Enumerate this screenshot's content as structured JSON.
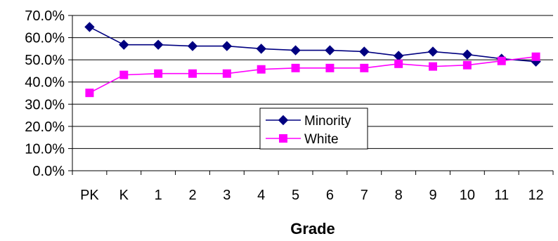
{
  "chart_data": {
    "type": "line",
    "title": "",
    "xlabel": "Grade",
    "ylabel": "",
    "categories": [
      "PK",
      "K",
      "1",
      "2",
      "3",
      "4",
      "5",
      "6",
      "7",
      "8",
      "9",
      "10",
      "11",
      "12"
    ],
    "series": [
      {
        "name": "Minority",
        "color": "#000080",
        "marker": "diamond",
        "values": [
          64.8,
          56.8,
          56.8,
          56.2,
          56.2,
          55.0,
          54.3,
          54.3,
          53.7,
          51.8,
          53.7,
          52.4,
          50.5,
          49.2
        ]
      },
      {
        "name": "White",
        "color": "#ff00ff",
        "marker": "square",
        "values": [
          35.1,
          43.2,
          43.8,
          43.8,
          43.8,
          45.7,
          46.3,
          46.3,
          46.3,
          48.2,
          47.0,
          47.6,
          49.5,
          51.4
        ]
      }
    ],
    "yticks": [
      "0.0%",
      "10.0%",
      "20.0%",
      "30.0%",
      "40.0%",
      "50.0%",
      "60.0%",
      "70.0%"
    ],
    "ylim": [
      0,
      70
    ],
    "grid": true,
    "legend_position": "center"
  }
}
